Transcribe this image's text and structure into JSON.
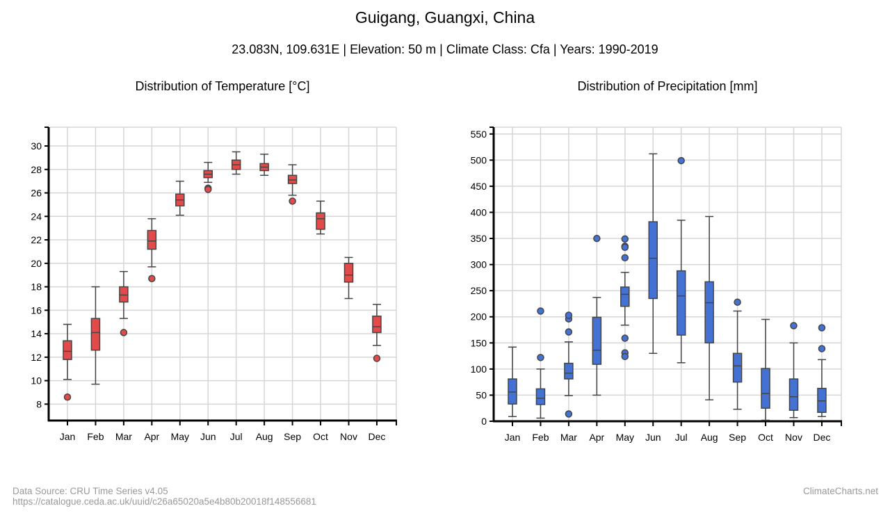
{
  "title": "Guigang, Guangxi, China",
  "subtitle": "23.083N, 109.631E | Elevation: 50 m | Climate Class: Cfa | Years: 1990-2019",
  "footer": {
    "source": "Data Source: CRU Time Series v4.05",
    "url": "https://catalogue.ceda.ac.uk/uuid/c26a65020a5e4b80b20018f148556681",
    "brand": "ClimateCharts.net"
  },
  "chart_data": [
    {
      "type": "box",
      "title": "Distribution of Temperature [°C]",
      "categories": [
        "Jan",
        "Feb",
        "Mar",
        "Apr",
        "May",
        "Jun",
        "Jul",
        "Aug",
        "Sep",
        "Oct",
        "Nov",
        "Dec"
      ],
      "ylim": [
        6.6,
        31.6
      ],
      "yticks": [
        8,
        10,
        12,
        14,
        16,
        18,
        20,
        22,
        24,
        26,
        28,
        30
      ],
      "grid": true,
      "color": "#e34a4a",
      "boxes": [
        {
          "min": 10.1,
          "q1": 11.8,
          "median": 12.5,
          "q3": 13.4,
          "max": 14.8,
          "outliers": [
            8.6
          ]
        },
        {
          "min": 9.7,
          "q1": 12.6,
          "median": 14.1,
          "q3": 15.3,
          "max": 18.0,
          "outliers": []
        },
        {
          "min": 15.3,
          "q1": 16.7,
          "median": 17.3,
          "q3": 18.0,
          "max": 19.3,
          "outliers": [
            14.1
          ]
        },
        {
          "min": 19.7,
          "q1": 21.2,
          "median": 21.9,
          "q3": 22.8,
          "max": 23.8,
          "outliers": [
            18.7
          ]
        },
        {
          "min": 24.1,
          "q1": 24.9,
          "median": 25.4,
          "q3": 25.9,
          "max": 27.0,
          "outliers": []
        },
        {
          "min": 26.9,
          "q1": 27.3,
          "median": 27.6,
          "q3": 27.9,
          "max": 28.6,
          "outliers": [
            26.4,
            26.3
          ]
        },
        {
          "min": 27.6,
          "q1": 28.0,
          "median": 28.4,
          "q3": 28.8,
          "max": 29.5,
          "outliers": []
        },
        {
          "min": 27.5,
          "q1": 27.9,
          "median": 28.2,
          "q3": 28.5,
          "max": 29.3,
          "outliers": []
        },
        {
          "min": 25.8,
          "q1": 26.8,
          "median": 27.1,
          "q3": 27.5,
          "max": 28.4,
          "outliers": [
            25.3
          ]
        },
        {
          "min": 22.5,
          "q1": 22.9,
          "median": 23.8,
          "q3": 24.3,
          "max": 25.3,
          "outliers": []
        },
        {
          "min": 17.0,
          "q1": 18.4,
          "median": 19.0,
          "q3": 20.0,
          "max": 20.5,
          "outliers": []
        },
        {
          "min": 13.0,
          "q1": 14.1,
          "median": 14.6,
          "q3": 15.5,
          "max": 16.5,
          "outliers": [
            11.9
          ]
        }
      ]
    },
    {
      "type": "box",
      "title": "Distribution of Precipitation [mm]",
      "categories": [
        "Jan",
        "Feb",
        "Mar",
        "Apr",
        "May",
        "Jun",
        "Jul",
        "Aug",
        "Sep",
        "Oct",
        "Nov",
        "Dec"
      ],
      "ylim": [
        0,
        563
      ],
      "yticks": [
        0,
        50,
        100,
        150,
        200,
        250,
        300,
        350,
        400,
        450,
        500,
        550
      ],
      "grid": true,
      "color": "#4472d4",
      "boxes": [
        {
          "min": 9,
          "q1": 33,
          "median": 56,
          "q3": 81,
          "max": 142,
          "outliers": []
        },
        {
          "min": 6,
          "q1": 32,
          "median": 44,
          "q3": 62,
          "max": 100,
          "outliers": [
            122,
            211
          ]
        },
        {
          "min": 49,
          "q1": 81,
          "median": 92,
          "q3": 111,
          "max": 152,
          "outliers": [
            14,
            171,
            196,
            203
          ]
        },
        {
          "min": 50,
          "q1": 109,
          "median": 136,
          "q3": 199,
          "max": 237,
          "outliers": [
            350
          ]
        },
        {
          "min": 184,
          "q1": 220,
          "median": 243,
          "q3": 257,
          "max": 285,
          "outliers": [
            349,
            335,
            333,
            313,
            159,
            131,
            124
          ]
        },
        {
          "min": 130,
          "q1": 235,
          "median": 312,
          "q3": 382,
          "max": 512,
          "outliers": []
        },
        {
          "min": 112,
          "q1": 165,
          "median": 240,
          "q3": 288,
          "max": 385,
          "outliers": [
            499
          ]
        },
        {
          "min": 41,
          "q1": 150,
          "median": 227,
          "q3": 267,
          "max": 392,
          "outliers": []
        },
        {
          "min": 23,
          "q1": 75,
          "median": 106,
          "q3": 130,
          "max": 211,
          "outliers": [
            228
          ]
        },
        {
          "min": 2,
          "q1": 25,
          "median": 53,
          "q3": 101,
          "max": 195,
          "outliers": []
        },
        {
          "min": 7,
          "q1": 21,
          "median": 47,
          "q3": 81,
          "max": 150,
          "outliers": [
            183
          ]
        },
        {
          "min": 9,
          "q1": 17,
          "median": 39,
          "q3": 63,
          "max": 118,
          "outliers": [
            179,
            139
          ]
        }
      ]
    }
  ]
}
